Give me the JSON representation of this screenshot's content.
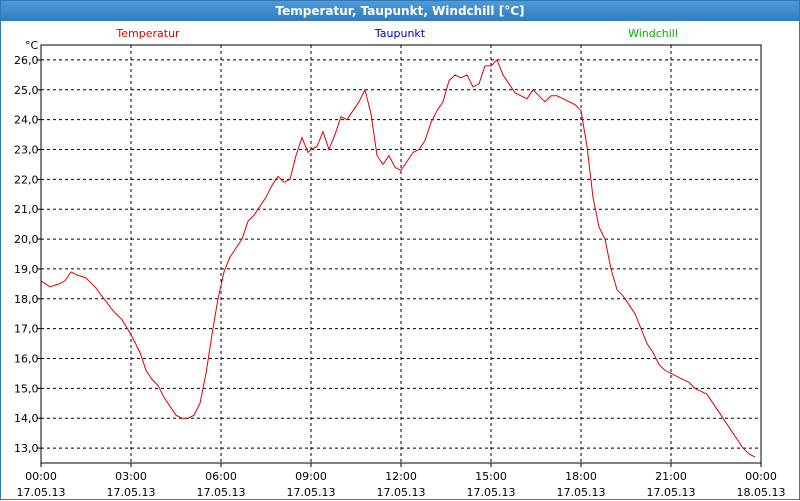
{
  "window": {
    "title": "Temperatur, Taupunkt, Windchill [°C]"
  },
  "chart_data": {
    "type": "line",
    "title": "Temperatur, Taupunkt, Windchill [°C]",
    "ylabel": "°C",
    "ylim": [
      12.5,
      26.5
    ],
    "yticks": [
      {
        "value": 26.0,
        "label": "26,0"
      },
      {
        "value": 25.0,
        "label": "25,0"
      },
      {
        "value": 24.0,
        "label": "24,0"
      },
      {
        "value": 23.0,
        "label": "23,0"
      },
      {
        "value": 22.0,
        "label": "22,0"
      },
      {
        "value": 21.0,
        "label": "21,0"
      },
      {
        "value": 20.0,
        "label": "20,0"
      },
      {
        "value": 19.0,
        "label": "19,0"
      },
      {
        "value": 18.0,
        "label": "18,0"
      },
      {
        "value": 17.0,
        "label": "17,0"
      },
      {
        "value": 16.0,
        "label": "16,0"
      },
      {
        "value": 15.0,
        "label": "15,0"
      },
      {
        "value": 14.0,
        "label": "14,0"
      },
      {
        "value": 13.0,
        "label": "13,0"
      }
    ],
    "xlim": [
      0,
      24
    ],
    "xticks": [
      {
        "value": 0,
        "time": "00:00",
        "date": "17.05.13"
      },
      {
        "value": 3,
        "time": "03:00",
        "date": "17.05.13"
      },
      {
        "value": 6,
        "time": "06:00",
        "date": "17.05.13"
      },
      {
        "value": 9,
        "time": "09:00",
        "date": "17.05.13"
      },
      {
        "value": 12,
        "time": "12:00",
        "date": "17.05.13"
      },
      {
        "value": 15,
        "time": "15:00",
        "date": "17.05.13"
      },
      {
        "value": 18,
        "time": "18:00",
        "date": "17.05.13"
      },
      {
        "value": 21,
        "time": "21:00",
        "date": "17.05.13"
      },
      {
        "value": 24,
        "time": "00:00",
        "date": "18.05.13"
      }
    ],
    "grid": true,
    "legend": [
      {
        "name": "Temperatur",
        "color": "#e00000"
      },
      {
        "name": "Taupunkt",
        "color": "#0000c8"
      },
      {
        "name": "Windchill",
        "color": "#00b400"
      }
    ],
    "series": [
      {
        "name": "Temperatur",
        "color": "#e00000",
        "x": [
          0.0,
          0.3,
          0.6,
          0.8,
          1.0,
          1.2,
          1.5,
          1.8,
          2.1,
          2.4,
          2.7,
          3.0,
          3.3,
          3.5,
          3.7,
          3.9,
          4.1,
          4.3,
          4.5,
          4.7,
          4.9,
          5.1,
          5.3,
          5.5,
          5.7,
          5.9,
          6.1,
          6.3,
          6.5,
          6.7,
          6.9,
          7.1,
          7.3,
          7.5,
          7.7,
          7.9,
          8.1,
          8.3,
          8.5,
          8.7,
          8.9,
          9.0,
          9.2,
          9.4,
          9.6,
          9.8,
          10.0,
          10.2,
          10.4,
          10.6,
          10.8,
          11.0,
          11.2,
          11.4,
          11.6,
          11.8,
          12.0,
          12.2,
          12.4,
          12.6,
          12.8,
          13.0,
          13.2,
          13.4,
          13.6,
          13.8,
          14.0,
          14.2,
          14.4,
          14.6,
          14.8,
          15.0,
          15.2,
          15.4,
          15.6,
          15.8,
          16.0,
          16.2,
          16.4,
          16.6,
          16.8,
          17.0,
          17.2,
          17.4,
          17.6,
          17.8,
          18.0,
          18.2,
          18.4,
          18.6,
          18.8,
          19.0,
          19.2,
          19.4,
          19.6,
          19.8,
          20.0,
          20.2,
          20.4,
          20.6,
          20.8,
          21.0,
          21.2,
          21.4,
          21.6,
          21.8,
          22.0,
          22.2,
          22.4,
          22.6,
          22.8,
          23.0,
          23.2,
          23.4,
          23.6,
          23.8
        ],
        "values": [
          18.6,
          18.4,
          18.5,
          18.6,
          18.9,
          18.8,
          18.7,
          18.4,
          18.0,
          17.6,
          17.3,
          16.8,
          16.2,
          15.6,
          15.3,
          15.1,
          14.7,
          14.4,
          14.1,
          14.0,
          14.0,
          14.1,
          14.5,
          15.5,
          16.8,
          18.0,
          18.9,
          19.4,
          19.7,
          20.0,
          20.6,
          20.8,
          21.1,
          21.4,
          21.8,
          22.1,
          21.9,
          22.0,
          22.8,
          23.4,
          22.9,
          23.0,
          23.1,
          23.6,
          23.0,
          23.5,
          24.1,
          24.0,
          24.3,
          24.6,
          25.0,
          24.2,
          22.8,
          22.5,
          22.8,
          22.4,
          22.3,
          22.6,
          22.9,
          23.0,
          23.3,
          23.9,
          24.3,
          24.6,
          25.3,
          25.5,
          25.4,
          25.5,
          25.1,
          25.2,
          25.8,
          25.8,
          26.0,
          25.5,
          25.2,
          24.9,
          24.8,
          24.7,
          25.0,
          24.8,
          24.6,
          24.8,
          24.8,
          24.7,
          24.6,
          24.5,
          24.3,
          23.1,
          21.4,
          20.4,
          20.0,
          19.0,
          18.3,
          18.1,
          17.8,
          17.5,
          17.0,
          16.5,
          16.2,
          15.8,
          15.6,
          15.5,
          15.4,
          15.3,
          15.2,
          15.0,
          14.9,
          14.8,
          14.5,
          14.2,
          13.9,
          13.6,
          13.3,
          13.0,
          12.8,
          12.7
        ]
      }
    ]
  }
}
